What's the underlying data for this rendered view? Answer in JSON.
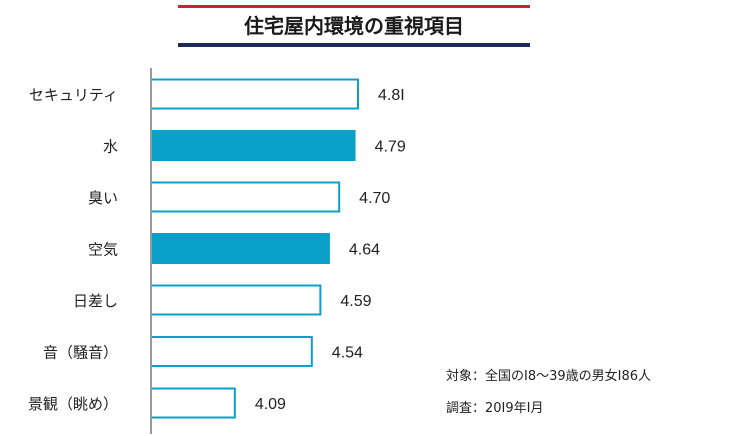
{
  "chart_data": {
    "type": "bar",
    "orientation": "horizontal",
    "title": "住宅屋内環境の重視項目",
    "categories": [
      "セキュリティ",
      "水",
      "臭い",
      "空気",
      "日差し",
      "音（騒音）",
      "景観（眺め）"
    ],
    "values": [
      4.81,
      4.79,
      4.7,
      4.64,
      4.59,
      4.54,
      4.09
    ],
    "value_labels": [
      "4.8I",
      "4.79",
      "4.70",
      "4.64",
      "4.59",
      "4.54",
      "4.09"
    ],
    "highlighted": [
      false,
      true,
      false,
      true,
      false,
      false,
      false
    ],
    "xlim": [
      3.6,
      4.81
    ],
    "grid": false,
    "legend": "none",
    "notes": [
      "対象：全国のI8～39歳の男女I86人",
      "調査：20I9年I月"
    ]
  },
  "colors": {
    "highlight_fill": "#0aa0c8",
    "bar_stroke": "#0aa0c8",
    "plain_fill": "#ffffff",
    "axis": "#999999",
    "title_bg": "#ffffff",
    "title_border_red": "#c0282d",
    "title_border_navy": "#1a2b5c"
  }
}
